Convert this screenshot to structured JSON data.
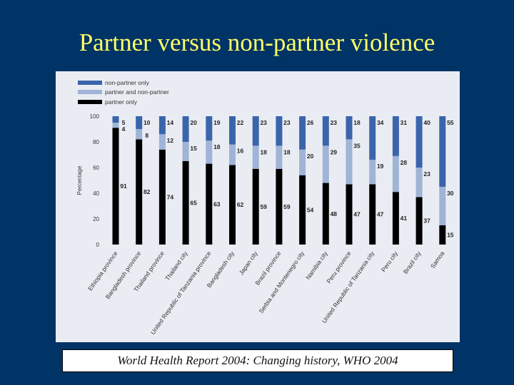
{
  "slide": {
    "title": "Partner versus non-partner violence",
    "caption": "World Health Report 2004: Changing history, WHO 2004"
  },
  "chart_data": {
    "type": "bar",
    "stacked": true,
    "ylabel": "Percentage",
    "ylim": [
      0,
      100
    ],
    "yticks": [
      0,
      20,
      40,
      60,
      80,
      100
    ],
    "legend_position": "top-left",
    "categories": [
      "Ethiopia province",
      "Bangladesh province",
      "Thailand province",
      "Thailand city",
      "United Republic of Tanzania province",
      "Bangladesh city",
      "Japan city",
      "Brazil province",
      "Serbia and Montenegro city",
      "Namibia city",
      "Peru province",
      "United Republic of Tanzania city",
      "Peru city",
      "Brazil city",
      "Samoa"
    ],
    "series": [
      {
        "name": "partner only",
        "color": "#000000",
        "values": [
          91,
          82,
          74,
          65,
          63,
          62,
          59,
          59,
          54,
          48,
          47,
          47,
          41,
          37,
          15
        ]
      },
      {
        "name": "partner and non-partner",
        "color": "#9fb4d6",
        "values": [
          4,
          8,
          12,
          15,
          18,
          16,
          18,
          18,
          20,
          29,
          35,
          19,
          28,
          23,
          30
        ]
      },
      {
        "name": "non-partner only",
        "color": "#3b65ab",
        "values": [
          5,
          10,
          14,
          20,
          19,
          22,
          23,
          23,
          26,
          23,
          18,
          34,
          31,
          40,
          55
        ]
      }
    ],
    "legend_order": [
      "non-partner only",
      "partner and non-partner",
      "partner only"
    ],
    "grid": false
  }
}
